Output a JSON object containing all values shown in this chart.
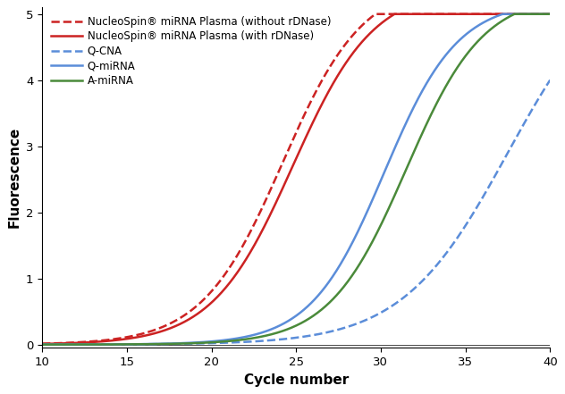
{
  "xlabel": "Cycle number",
  "ylabel": "Fluorescence",
  "xlim": [
    10,
    40
  ],
  "ylim": [
    -0.05,
    5.1
  ],
  "xticks": [
    10,
    15,
    20,
    25,
    30,
    35,
    40
  ],
  "yticks": [
    0,
    1,
    2,
    3,
    4,
    5
  ],
  "curves": [
    {
      "label": "NucleoSpin® miRNA Plasma (without rDNase)",
      "color": "#cc2222",
      "linestyle": "dashed",
      "linewidth": 1.8,
      "sigmoid": {
        "L": 5.5,
        "k": 0.42,
        "x0": 24.2
      }
    },
    {
      "label": "NucleoSpin® miRNA Plasma (with rDNase)",
      "color": "#cc2222",
      "linestyle": "solid",
      "linewidth": 1.8,
      "sigmoid": {
        "L": 5.4,
        "k": 0.42,
        "x0": 24.8
      }
    },
    {
      "label": "Q-CNA",
      "color": "#5b8dd9",
      "linestyle": "dashed",
      "linewidth": 1.8,
      "sigmoid": {
        "L": 5.8,
        "k": 0.32,
        "x0": 37.5
      }
    },
    {
      "label": "Q-miRNA",
      "color": "#5b8dd9",
      "linestyle": "solid",
      "linewidth": 1.8,
      "sigmoid": {
        "L": 5.2,
        "k": 0.46,
        "x0": 30.2
      }
    },
    {
      "label": "A-miRNA",
      "color": "#4a8a3a",
      "linestyle": "solid",
      "linewidth": 1.8,
      "sigmoid": {
        "L": 5.3,
        "k": 0.44,
        "x0": 31.5
      }
    }
  ],
  "legend_fontsize": 8.5,
  "axis_label_fontsize": 11,
  "tick_fontsize": 9.5,
  "background_color": "#ffffff"
}
